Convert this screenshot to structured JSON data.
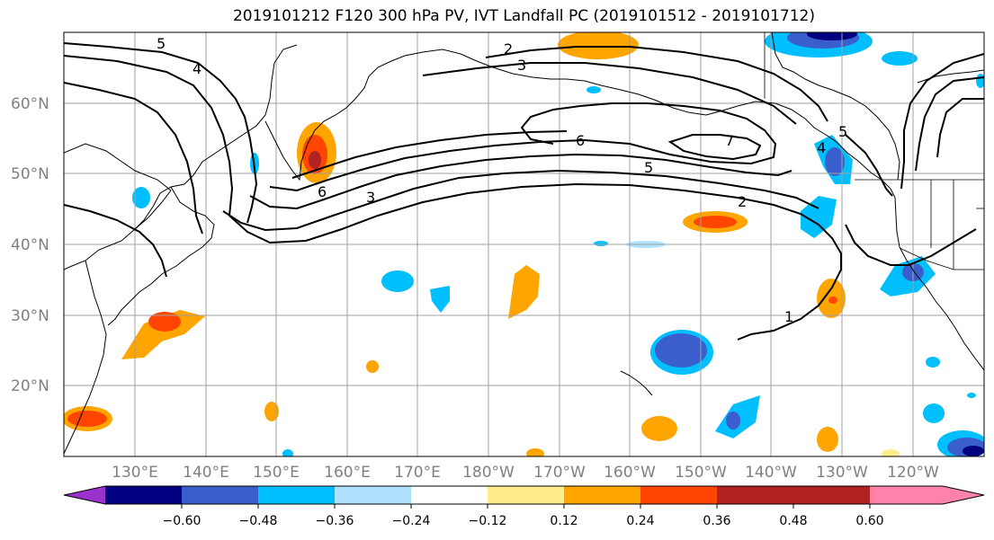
{
  "title": "2019101212 F120 300 hPa PV, IVT Landfall PC (2019101512 - 2019101712)",
  "lat_labels": [
    "60°N",
    "50°N",
    "40°N",
    "30°N",
    "20°N"
  ],
  "lon_labels": [
    "130°E",
    "140°E",
    "150°E",
    "160°E",
    "170°E",
    "180°W",
    "170°W",
    "160°W",
    "150°W",
    "140°W",
    "130°W",
    "120°W"
  ],
  "contour_labels": [
    "5",
    "4",
    "2",
    "3",
    "7",
    "6",
    "5",
    "6",
    "3",
    "2",
    "1",
    "5",
    "4"
  ],
  "colorbar": {
    "colors": [
      "#9932cc",
      "#000080",
      "#3a5fcd",
      "#00bfff",
      "#b0e2ff",
      "#ffffff",
      "#ffec8b",
      "#ffa500",
      "#ff4500",
      "#b22222",
      "#ff82ab"
    ],
    "tick_labels": [
      "−0.60",
      "−0.48",
      "−0.36",
      "−0.24",
      "−0.12",
      "0.12",
      "0.24",
      "0.36",
      "0.48",
      "0.60"
    ]
  }
}
